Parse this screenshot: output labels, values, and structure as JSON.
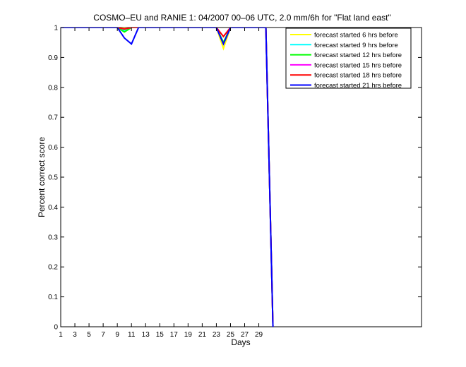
{
  "chart_data": {
    "type": "line",
    "title": "COSMO–EU and RANIE 1: 04/2007 00–06 UTC, 2.0 mm/6h for \"Flat land east\"",
    "xlabel": "Days",
    "ylabel": "Percent correct score",
    "xlim": [
      1,
      52
    ],
    "ylim": [
      0,
      1
    ],
    "xticks": [
      1,
      3,
      5,
      7,
      9,
      11,
      13,
      15,
      17,
      19,
      21,
      23,
      25,
      27,
      29
    ],
    "yticks": [
      0,
      0.1,
      0.2,
      0.3,
      0.4,
      0.5,
      0.6,
      0.7,
      0.8,
      0.9,
      1
    ],
    "ytick_labels": [
      "0",
      "0.1",
      "0.2",
      "0.3",
      "0.4",
      "0.5",
      "0.6",
      "0.7",
      "0.8",
      "0.9",
      "1"
    ],
    "legend_position": "top-right",
    "grid": false,
    "x": [
      1,
      2,
      3,
      4,
      5,
      6,
      7,
      8,
      9,
      10,
      11,
      12,
      13,
      14,
      15,
      16,
      17,
      18,
      19,
      20,
      21,
      22,
      23,
      24,
      25,
      26,
      27,
      28,
      29,
      30,
      31
    ],
    "series": [
      {
        "name": "forecast started 6 hrs before",
        "color": "#ffff00",
        "values": [
          1,
          1,
          1,
          1,
          1,
          1,
          1,
          1,
          1,
          1,
          1,
          1,
          1,
          1,
          1,
          1,
          1,
          1,
          1,
          1,
          1,
          1,
          1,
          0.93,
          1,
          1,
          1,
          1,
          1,
          1,
          0
        ]
      },
      {
        "name": "forecast started 9 hrs before",
        "color": "#00ffff",
        "values": [
          1,
          1,
          1,
          1,
          1,
          1,
          1,
          1,
          1,
          0.99,
          1,
          1,
          1,
          1,
          1,
          1,
          1,
          1,
          1,
          1,
          1,
          1,
          1,
          0.95,
          1,
          1,
          1,
          1,
          1,
          1,
          0
        ]
      },
      {
        "name": "forecast started 12 hrs before",
        "color": "#00ff00",
        "values": [
          1,
          1,
          1,
          1,
          1,
          1,
          1,
          1,
          1,
          0.985,
          1,
          1,
          1,
          1,
          1,
          1,
          1,
          1,
          1,
          1,
          1,
          1,
          1,
          0.95,
          1,
          1,
          1,
          1,
          1,
          1,
          0
        ]
      },
      {
        "name": "forecast started 15 hrs before",
        "color": "#ff00ff",
        "values": [
          1,
          1,
          1,
          1,
          1,
          1,
          1,
          1,
          1,
          0.995,
          1,
          1,
          1,
          1,
          1,
          1,
          1,
          1,
          1,
          1,
          1,
          1,
          1,
          0.97,
          1,
          1,
          1,
          1,
          1,
          1,
          0
        ]
      },
      {
        "name": "forecast started 18 hrs before",
        "color": "#ff0000",
        "values": [
          1,
          1,
          1,
          1,
          1,
          1,
          1,
          1,
          1,
          0.995,
          1,
          1,
          1,
          1,
          1,
          1,
          1,
          1,
          1,
          1,
          1,
          1,
          1,
          0.97,
          1,
          1,
          1,
          1,
          1,
          1,
          0
        ]
      },
      {
        "name": "forecast started 21 hrs before",
        "color": "#0000ff",
        "values": [
          1,
          1,
          1,
          1,
          1,
          1,
          1,
          1,
          1,
          0.965,
          0.945,
          1,
          1,
          1,
          1,
          1,
          1,
          1,
          1,
          1,
          1,
          1,
          1,
          0.945,
          1,
          1,
          1,
          1,
          1,
          1,
          0
        ]
      }
    ]
  }
}
